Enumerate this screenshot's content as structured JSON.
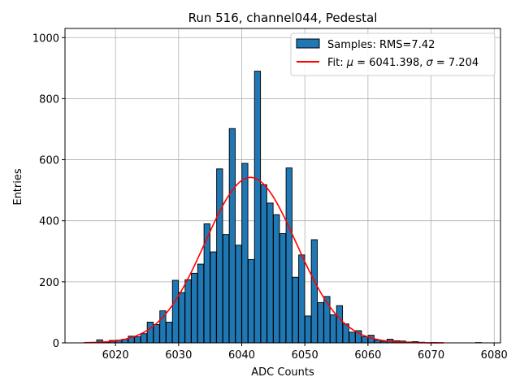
{
  "chart_data": {
    "type": "bar",
    "title": "Run 516, channel044, Pedestal",
    "xlabel": "ADC Counts",
    "ylabel": "Entries",
    "xlim": [
      6012,
      6081
    ],
    "ylim": [
      0,
      1030
    ],
    "xticks": [
      6020,
      6030,
      6040,
      6050,
      6060,
      6070,
      6080
    ],
    "yticks": [
      0,
      200,
      400,
      600,
      800,
      1000
    ],
    "grid": true,
    "legend_position": "top-right",
    "colors": {
      "bar_fill": "#1f77b4",
      "bar_edge": "#000000",
      "fit_line": "#ff0000",
      "grid": "#b0b0b0"
    },
    "series": [
      {
        "name": "Samples: RMS=7.42",
        "kind": "histogram",
        "bin_width": 0.95,
        "bins": [
          {
            "x": 6017.5,
            "y": 10
          },
          {
            "x": 6018.5,
            "y": 3
          },
          {
            "x": 6019.5,
            "y": 8
          },
          {
            "x": 6020.5,
            "y": 9
          },
          {
            "x": 6021.5,
            "y": 12
          },
          {
            "x": 6022.5,
            "y": 22
          },
          {
            "x": 6023.5,
            "y": 20
          },
          {
            "x": 6024.5,
            "y": 30
          },
          {
            "x": 6025.5,
            "y": 68
          },
          {
            "x": 6026.5,
            "y": 60
          },
          {
            "x": 6027.5,
            "y": 105
          },
          {
            "x": 6028.5,
            "y": 68
          },
          {
            "x": 6029.5,
            "y": 205
          },
          {
            "x": 6030.5,
            "y": 165
          },
          {
            "x": 6031.5,
            "y": 207
          },
          {
            "x": 6032.5,
            "y": 228
          },
          {
            "x": 6033.5,
            "y": 258
          },
          {
            "x": 6034.5,
            "y": 390
          },
          {
            "x": 6035.5,
            "y": 298
          },
          {
            "x": 6036.5,
            "y": 570
          },
          {
            "x": 6037.5,
            "y": 355
          },
          {
            "x": 6038.5,
            "y": 702
          },
          {
            "x": 6039.5,
            "y": 320
          },
          {
            "x": 6040.5,
            "y": 588
          },
          {
            "x": 6041.5,
            "y": 273
          },
          {
            "x": 6042.5,
            "y": 890
          },
          {
            "x": 6043.5,
            "y": 518
          },
          {
            "x": 6044.5,
            "y": 458
          },
          {
            "x": 6045.5,
            "y": 420
          },
          {
            "x": 6046.5,
            "y": 358
          },
          {
            "x": 6047.5,
            "y": 573
          },
          {
            "x": 6048.5,
            "y": 215
          },
          {
            "x": 6049.5,
            "y": 288
          },
          {
            "x": 6050.5,
            "y": 88
          },
          {
            "x": 6051.5,
            "y": 338
          },
          {
            "x": 6052.5,
            "y": 132
          },
          {
            "x": 6053.5,
            "y": 152
          },
          {
            "x": 6054.5,
            "y": 92
          },
          {
            "x": 6055.5,
            "y": 122
          },
          {
            "x": 6056.5,
            "y": 62
          },
          {
            "x": 6057.5,
            "y": 35
          },
          {
            "x": 6058.5,
            "y": 40
          },
          {
            "x": 6059.5,
            "y": 20
          },
          {
            "x": 6060.5,
            "y": 25
          },
          {
            "x": 6061.5,
            "y": 9
          },
          {
            "x": 6062.5,
            "y": 5
          },
          {
            "x": 6063.5,
            "y": 12
          },
          {
            "x": 6064.5,
            "y": 7
          },
          {
            "x": 6065.5,
            "y": 6
          },
          {
            "x": 6066.5,
            "y": 3
          },
          {
            "x": 6067.5,
            "y": 4
          },
          {
            "x": 6068.5,
            "y": 2
          },
          {
            "x": 6070.5,
            "y": 1
          },
          {
            "x": 6077.5,
            "y": 1
          }
        ]
      },
      {
        "name": "Fit: μ = 6041.398, σ = 7.204",
        "kind": "gaussian_line",
        "mu": 6041.398,
        "sigma": 7.204,
        "amplitude": 542,
        "x_range": [
          6015,
          6072
        ]
      }
    ],
    "legend_entries": [
      {
        "label_prefix": "Samples: RMS=7.42",
        "label_math": ""
      },
      {
        "label_prefix": "Fit: ",
        "mu_symbol": "μ",
        "mu_text": " = 6041.398, ",
        "sigma_symbol": "σ",
        "sigma_text": " = 7.204"
      }
    ]
  }
}
